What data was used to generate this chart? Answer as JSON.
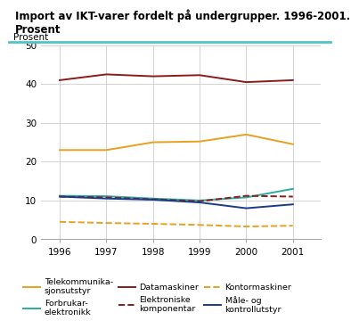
{
  "title_line1": "Import av IKT-varer fordelt på undergrupper. 1996-2001.",
  "title_line2": "Prosent",
  "ylabel": "Prosent",
  "years": [
    1996,
    1997,
    1998,
    1999,
    2000,
    2001
  ],
  "series": [
    {
      "label": "Telekommunika-\nsjonsutstyr",
      "values": [
        23.0,
        23.0,
        25.0,
        25.2,
        27.0,
        24.5
      ],
      "color": "#E8A020",
      "linestyle": "solid",
      "linewidth": 1.4
    },
    {
      "label": "Forbrukar-\nelektronikk",
      "values": [
        11.2,
        11.1,
        10.5,
        10.0,
        10.8,
        13.0
      ],
      "color": "#2AADA0",
      "linestyle": "solid",
      "linewidth": 1.4
    },
    {
      "label": "Datamaskiner",
      "values": [
        41.0,
        42.5,
        42.0,
        42.3,
        40.5,
        41.0
      ],
      "color": "#8B1A1A",
      "linestyle": "solid",
      "linewidth": 1.4
    },
    {
      "label": "Elektroniske\nkomponentar",
      "values": [
        11.0,
        10.8,
        10.3,
        9.8,
        11.2,
        11.0
      ],
      "color": "#8B1A1A",
      "linestyle": "dashed",
      "linewidth": 1.4
    },
    {
      "label": "Kontormaskiner",
      "values": [
        4.5,
        4.2,
        4.0,
        3.7,
        3.3,
        3.5
      ],
      "color": "#E8A020",
      "linestyle": "dashed",
      "linewidth": 1.4
    },
    {
      "label": "Måle- og\nkontrollutstyr",
      "values": [
        11.0,
        10.5,
        10.2,
        9.5,
        8.0,
        9.0
      ],
      "color": "#1A3A8A",
      "linestyle": "solid",
      "linewidth": 1.4
    }
  ],
  "ylim": [
    0,
    50
  ],
  "yticks": [
    0,
    10,
    20,
    30,
    40,
    50
  ],
  "background_color": "#ffffff",
  "grid_color": "#cccccc",
  "accent_color": "#4FC4C4"
}
